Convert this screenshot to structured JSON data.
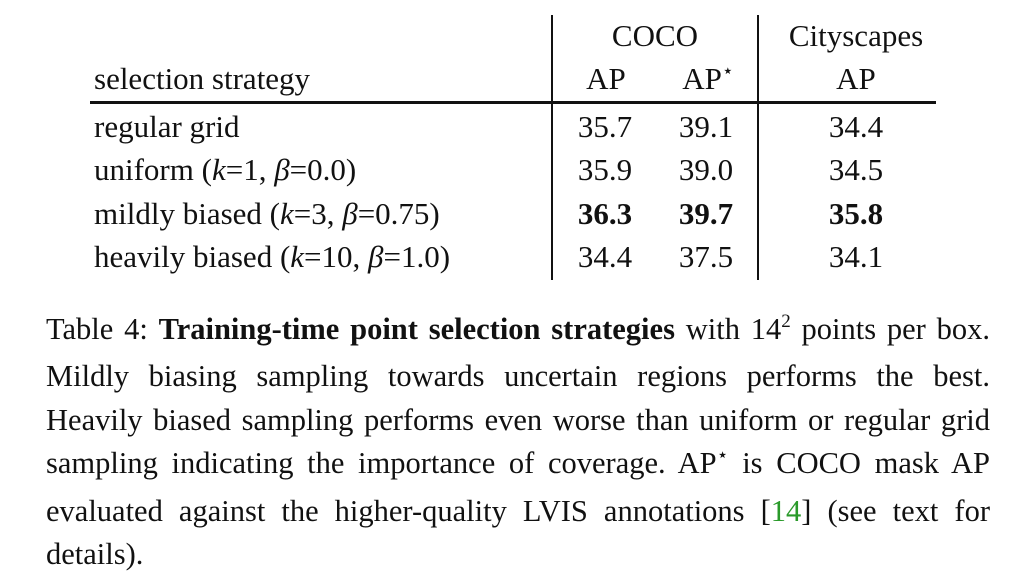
{
  "table": {
    "group_coco": "COCO",
    "group_cityscapes": "Cityscapes",
    "col_label": "selection strategy",
    "col_ap": "AP",
    "col_apstar_base": "AP",
    "star": "⋆",
    "rows": [
      {
        "pre": "regular grid",
        "k": "",
        "beta": "",
        "ap": "35.7",
        "apstar": "39.1",
        "cs": "34.4",
        "bold": false
      },
      {
        "pre": "uniform (",
        "k": "=1, ",
        "beta": "=0.0)",
        "ap": "35.9",
        "apstar": "39.0",
        "cs": "34.5",
        "bold": false
      },
      {
        "pre": "mildly biased (",
        "k": "=3, ",
        "beta": "=0.75)",
        "ap": "36.3",
        "apstar": "39.7",
        "cs": "35.8",
        "bold": true
      },
      {
        "pre": "heavily biased (",
        "k": "=10, ",
        "beta": "=1.0)",
        "ap": "34.4",
        "apstar": "37.5",
        "cs": "34.1",
        "bold": false
      }
    ]
  },
  "caption": {
    "label": "Table 4:",
    "title": "Training-time point selection strategies",
    "p1": " with 14",
    "exp": "2",
    "p2": " points per box. Mildly biasing sampling towards uncertain regions performs the best. Heavily biased sampling performs even worse than uniform or regular grid sampling indicating the importance of coverage. AP",
    "star": "⋆",
    "p3": " is COCO mask AP evaluated against the higher-quality LVIS annotations [",
    "cite": "14",
    "p4": "] (see text for details)."
  }
}
